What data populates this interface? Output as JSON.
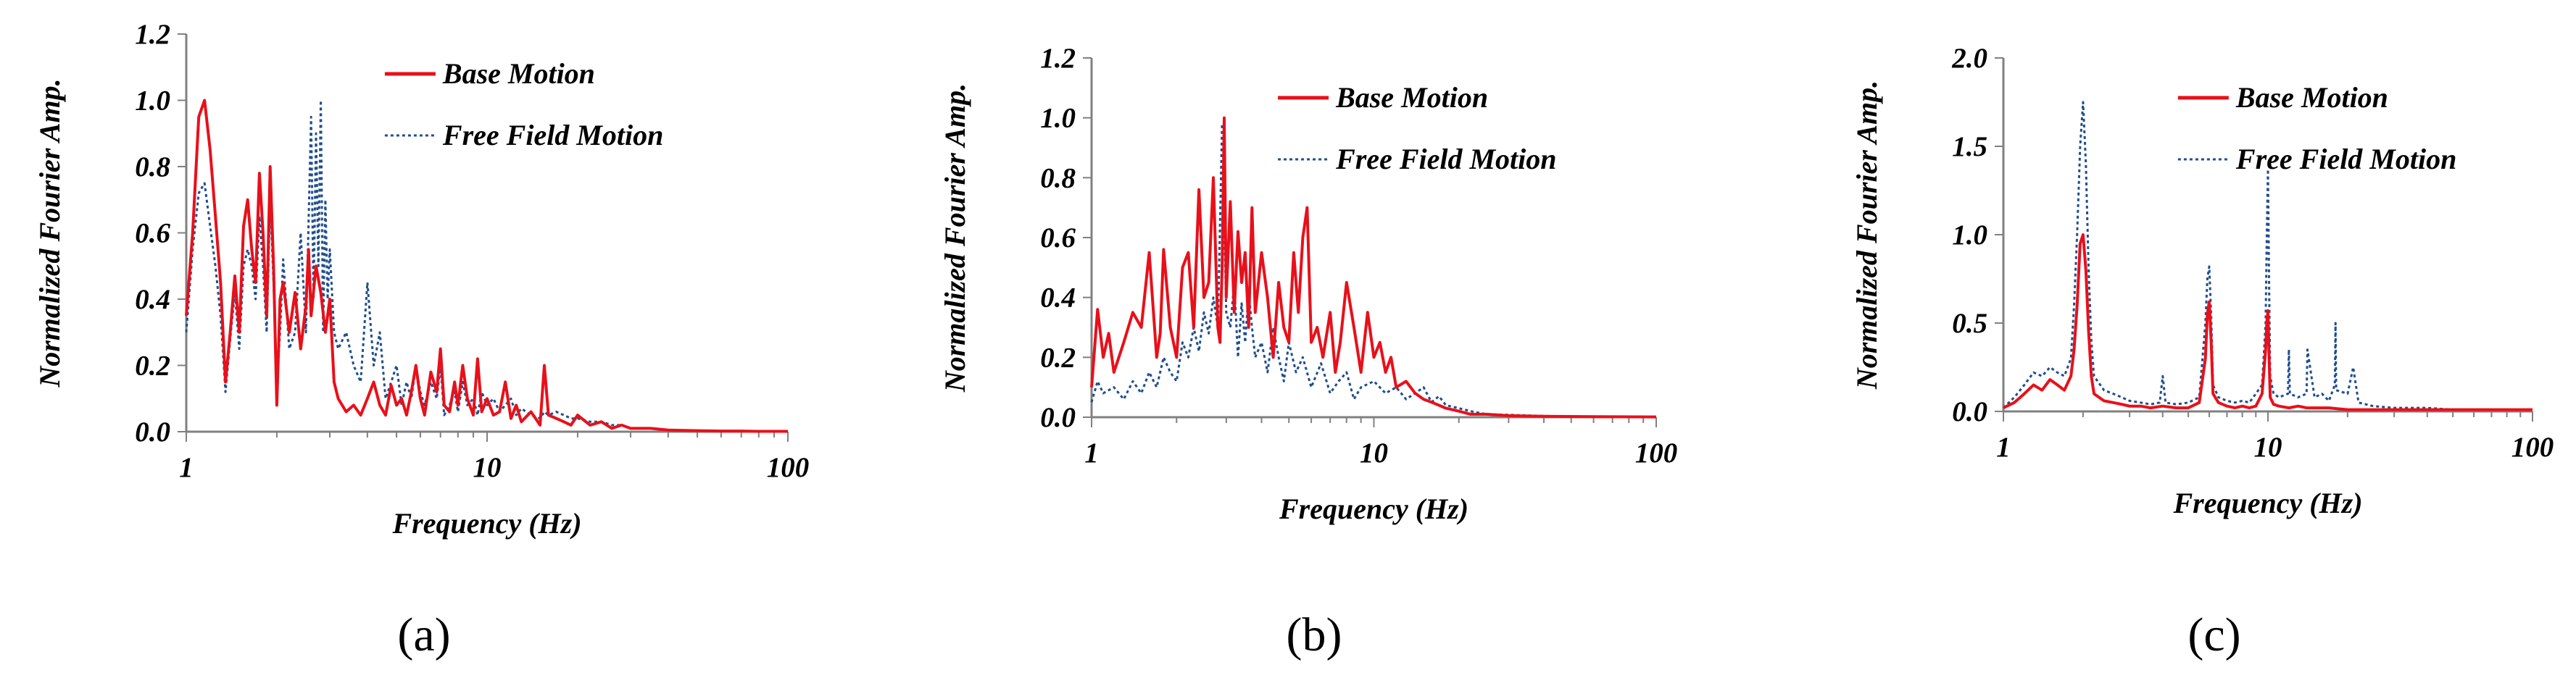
{
  "colors": {
    "base_motion": "#e8101a",
    "free_field_motion": "#1f4e8c",
    "axis": "#808080"
  },
  "chart_data": [
    {
      "type": "line",
      "panel_label": "(a)",
      "xlabel": "Frequency (Hz)",
      "ylabel": "Normalized Fourier Amp.",
      "xscale": "log",
      "xlim": [
        1,
        100
      ],
      "ylim": [
        0,
        1.2
      ],
      "x_ticks": [
        1,
        10,
        100
      ],
      "x_tick_labels": [
        "1",
        "10",
        "100"
      ],
      "y_ticks": [
        0,
        0.2,
        0.4,
        0.6,
        0.8,
        1.0,
        1.2
      ],
      "y_tick_labels": [
        "0.0",
        "0.2",
        "0.4",
        "0.6",
        "0.8",
        "1.0",
        "1.2"
      ],
      "grid": false,
      "legend": "top-right",
      "series": [
        {
          "name": "Base Motion",
          "style": "solid",
          "x": [
            1.0,
            1.05,
            1.1,
            1.15,
            1.2,
            1.25,
            1.3,
            1.35,
            1.4,
            1.45,
            1.5,
            1.55,
            1.6,
            1.65,
            1.7,
            1.75,
            1.8,
            1.85,
            1.9,
            1.95,
            2.0,
            2.05,
            2.1,
            2.2,
            2.3,
            2.4,
            2.5,
            2.55,
            2.6,
            2.7,
            2.8,
            2.9,
            3.0,
            3.1,
            3.2,
            3.4,
            3.6,
            3.8,
            4.0,
            4.2,
            4.4,
            4.6,
            4.8,
            5.0,
            5.2,
            5.4,
            5.6,
            5.8,
            6.0,
            6.2,
            6.5,
            6.8,
            7.0,
            7.2,
            7.5,
            7.8,
            8.0,
            8.3,
            8.6,
            9.0,
            9.3,
            9.6,
            10.0,
            10.5,
            11.0,
            11.5,
            12.0,
            12.5,
            13.0,
            14.0,
            15.0,
            15.5,
            16.0,
            17.0,
            18.0,
            19.0,
            20.0,
            22.0,
            24.0,
            26.0,
            28.0,
            30.0,
            35.0,
            40.0,
            50.0,
            60.0,
            70.0,
            80.0,
            100.0
          ],
          "y": [
            0.35,
            0.6,
            0.95,
            1.0,
            0.85,
            0.65,
            0.45,
            0.15,
            0.3,
            0.47,
            0.3,
            0.62,
            0.7,
            0.55,
            0.45,
            0.78,
            0.6,
            0.35,
            0.8,
            0.5,
            0.08,
            0.4,
            0.45,
            0.3,
            0.42,
            0.25,
            0.38,
            0.55,
            0.35,
            0.5,
            0.42,
            0.3,
            0.4,
            0.15,
            0.1,
            0.06,
            0.08,
            0.05,
            0.1,
            0.15,
            0.08,
            0.05,
            0.14,
            0.08,
            0.1,
            0.05,
            0.12,
            0.2,
            0.1,
            0.05,
            0.18,
            0.12,
            0.25,
            0.08,
            0.06,
            0.15,
            0.08,
            0.2,
            0.1,
            0.05,
            0.22,
            0.06,
            0.1,
            0.05,
            0.06,
            0.15,
            0.04,
            0.08,
            0.03,
            0.06,
            0.02,
            0.2,
            0.05,
            0.04,
            0.03,
            0.02,
            0.05,
            0.02,
            0.03,
            0.01,
            0.02,
            0.01,
            0.01,
            0.005,
            0.003,
            0.002,
            0.002,
            0.001,
            0.001
          ]
        },
        {
          "name": "Free Field Motion",
          "style": "dotted",
          "x": [
            1.0,
            1.05,
            1.1,
            1.15,
            1.2,
            1.25,
            1.3,
            1.35,
            1.4,
            1.45,
            1.5,
            1.55,
            1.6,
            1.65,
            1.7,
            1.75,
            1.8,
            1.85,
            1.9,
            1.95,
            2.0,
            2.05,
            2.1,
            2.2,
            2.3,
            2.4,
            2.5,
            2.6,
            2.65,
            2.7,
            2.75,
            2.8,
            2.85,
            2.9,
            2.95,
            3.0,
            3.1,
            3.2,
            3.4,
            3.6,
            3.8,
            4.0,
            4.2,
            4.4,
            4.6,
            4.8,
            5.0,
            5.2,
            5.4,
            5.6,
            5.8,
            6.0,
            6.2,
            6.5,
            6.8,
            7.0,
            7.2,
            7.5,
            7.8,
            8.0,
            8.3,
            8.6,
            9.0,
            9.3,
            9.6,
            10.0,
            10.5,
            11.0,
            11.5,
            12.0,
            12.5,
            13.0,
            14.0,
            15.0,
            15.5,
            16.0,
            17.0,
            18.0,
            19.0,
            20.0,
            22.0,
            24.0,
            26.0,
            28.0,
            30.0,
            35.0,
            40.0,
            50.0,
            60.0,
            70.0,
            80.0,
            100.0
          ],
          "y": [
            0.3,
            0.55,
            0.72,
            0.75,
            0.62,
            0.5,
            0.35,
            0.12,
            0.28,
            0.42,
            0.25,
            0.5,
            0.55,
            0.5,
            0.4,
            0.65,
            0.5,
            0.3,
            0.7,
            0.45,
            0.15,
            0.3,
            0.52,
            0.25,
            0.3,
            0.6,
            0.3,
            0.95,
            0.4,
            0.9,
            0.5,
            1.0,
            0.3,
            0.7,
            0.4,
            0.55,
            0.3,
            0.25,
            0.3,
            0.2,
            0.15,
            0.45,
            0.2,
            0.3,
            0.1,
            0.15,
            0.2,
            0.08,
            0.15,
            0.1,
            0.2,
            0.12,
            0.08,
            0.15,
            0.1,
            0.2,
            0.05,
            0.08,
            0.12,
            0.06,
            0.15,
            0.08,
            0.1,
            0.05,
            0.12,
            0.08,
            0.1,
            0.06,
            0.08,
            0.1,
            0.05,
            0.07,
            0.05,
            0.04,
            0.06,
            0.05,
            0.06,
            0.05,
            0.04,
            0.04,
            0.03,
            0.03,
            0.02,
            0.02,
            0.01,
            0.01,
            0.005,
            0.003,
            0.002,
            0.001,
            0.001,
            0.001
          ]
        }
      ]
    },
    {
      "type": "line",
      "panel_label": "(b)",
      "xlabel": "Frequency (Hz)",
      "ylabel": "Normalized Fourier Amp.",
      "xscale": "log",
      "xlim": [
        1,
        100
      ],
      "ylim": [
        0,
        1.2
      ],
      "x_ticks": [
        1,
        10,
        100
      ],
      "x_tick_labels": [
        "1",
        "10",
        "100"
      ],
      "y_ticks": [
        0,
        0.2,
        0.4,
        0.6,
        0.8,
        1.0,
        1.2
      ],
      "y_tick_labels": [
        "0.0",
        "0.2",
        "0.4",
        "0.6",
        "0.8",
        "1.0",
        "1.2"
      ],
      "grid": false,
      "legend": "top-right",
      "series": [
        {
          "name": "Base Motion",
          "style": "solid",
          "x": [
            1.0,
            1.05,
            1.1,
            1.15,
            1.2,
            1.3,
            1.4,
            1.5,
            1.6,
            1.7,
            1.75,
            1.8,
            1.9,
            2.0,
            2.1,
            2.2,
            2.3,
            2.4,
            2.5,
            2.6,
            2.7,
            2.8,
            2.85,
            2.9,
            2.95,
            3.0,
            3.1,
            3.2,
            3.3,
            3.4,
            3.5,
            3.6,
            3.7,
            3.8,
            3.9,
            4.0,
            4.2,
            4.4,
            4.6,
            4.8,
            5.0,
            5.2,
            5.4,
            5.6,
            5.8,
            6.0,
            6.3,
            6.6,
            7.0,
            7.3,
            7.6,
            8.0,
            8.5,
            9.0,
            9.5,
            10.0,
            10.5,
            11.0,
            11.5,
            12.0,
            13.0,
            14.0,
            15.0,
            16.0,
            17.0,
            18.0,
            20.0,
            22.0,
            25.0,
            30.0,
            40.0,
            60.0,
            100.0
          ],
          "y": [
            0.1,
            0.36,
            0.2,
            0.28,
            0.15,
            0.25,
            0.35,
            0.3,
            0.55,
            0.2,
            0.28,
            0.56,
            0.3,
            0.2,
            0.5,
            0.55,
            0.3,
            0.76,
            0.4,
            0.45,
            0.8,
            0.3,
            0.25,
            0.5,
            1.0,
            0.4,
            0.72,
            0.35,
            0.62,
            0.45,
            0.55,
            0.3,
            0.7,
            0.35,
            0.45,
            0.55,
            0.4,
            0.2,
            0.45,
            0.3,
            0.25,
            0.55,
            0.35,
            0.6,
            0.7,
            0.25,
            0.3,
            0.2,
            0.35,
            0.15,
            0.25,
            0.45,
            0.3,
            0.15,
            0.35,
            0.2,
            0.25,
            0.15,
            0.2,
            0.1,
            0.12,
            0.08,
            0.06,
            0.05,
            0.04,
            0.03,
            0.02,
            0.01,
            0.01,
            0.005,
            0.003,
            0.002,
            0.001
          ]
        },
        {
          "name": "Free Field Motion",
          "style": "dotted",
          "x": [
            1.0,
            1.05,
            1.1,
            1.2,
            1.3,
            1.4,
            1.5,
            1.6,
            1.7,
            1.8,
            1.9,
            2.0,
            2.1,
            2.2,
            2.3,
            2.4,
            2.5,
            2.6,
            2.7,
            2.8,
            2.9,
            3.0,
            3.1,
            3.2,
            3.3,
            3.4,
            3.5,
            3.6,
            3.7,
            3.8,
            4.0,
            4.2,
            4.4,
            4.6,
            4.8,
            5.0,
            5.3,
            5.6,
            6.0,
            6.5,
            7.0,
            7.5,
            8.0,
            8.5,
            9.0,
            10.0,
            11.0,
            12.0,
            13.0,
            14.0,
            15.0,
            16.0,
            17.0,
            18.0,
            20.0,
            22.0,
            25.0,
            30.0,
            40.0,
            60.0,
            100.0
          ],
          "y": [
            0.05,
            0.12,
            0.08,
            0.1,
            0.06,
            0.12,
            0.08,
            0.15,
            0.1,
            0.2,
            0.15,
            0.12,
            0.25,
            0.2,
            0.3,
            0.22,
            0.35,
            0.28,
            0.4,
            0.3,
            0.98,
            0.35,
            0.3,
            0.45,
            0.2,
            0.38,
            0.25,
            0.42,
            0.3,
            0.2,
            0.25,
            0.15,
            0.3,
            0.2,
            0.12,
            0.25,
            0.15,
            0.2,
            0.1,
            0.18,
            0.08,
            0.12,
            0.15,
            0.06,
            0.1,
            0.12,
            0.08,
            0.1,
            0.06,
            0.08,
            0.1,
            0.05,
            0.07,
            0.04,
            0.03,
            0.02,
            0.01,
            0.008,
            0.004,
            0.002,
            0.001
          ]
        }
      ]
    },
    {
      "type": "line",
      "panel_label": "(c)",
      "xlabel": "Frequency (Hz)",
      "ylabel": "Normalized Fourier Amp.",
      "xscale": "log",
      "xlim": [
        1,
        100
      ],
      "ylim": [
        0,
        2.0
      ],
      "x_ticks": [
        1,
        10,
        100
      ],
      "x_tick_labels": [
        "1",
        "10",
        "100"
      ],
      "y_ticks": [
        0,
        0.5,
        1.0,
        1.5,
        2.0
      ],
      "y_tick_labels": [
        "0.0",
        "0.5",
        "1.0",
        "1.5",
        "2.0"
      ],
      "grid": false,
      "legend": "top-right",
      "series": [
        {
          "name": "Base Motion",
          "style": "solid",
          "x": [
            1.0,
            1.1,
            1.2,
            1.3,
            1.4,
            1.5,
            1.6,
            1.7,
            1.8,
            1.85,
            1.9,
            1.95,
            2.0,
            2.05,
            2.1,
            2.15,
            2.2,
            2.4,
            2.6,
            2.8,
            3.0,
            3.3,
            3.6,
            4.0,
            4.5,
            5.0,
            5.5,
            5.8,
            5.9,
            6.0,
            6.1,
            6.2,
            6.5,
            7.0,
            7.5,
            8.0,
            8.5,
            9.0,
            9.5,
            9.8,
            9.9,
            10.0,
            10.1,
            10.2,
            10.5,
            11.0,
            12.0,
            13.0,
            14.0,
            15.0,
            17.0,
            20.0,
            25.0,
            30.0,
            40.0,
            50.0,
            60.0,
            80.0,
            100.0
          ],
          "y": [
            0.02,
            0.05,
            0.1,
            0.15,
            0.12,
            0.18,
            0.15,
            0.12,
            0.2,
            0.35,
            0.6,
            0.95,
            1.0,
            0.8,
            0.45,
            0.2,
            0.1,
            0.06,
            0.05,
            0.04,
            0.03,
            0.03,
            0.02,
            0.03,
            0.02,
            0.02,
            0.05,
            0.3,
            0.55,
            0.62,
            0.4,
            0.1,
            0.05,
            0.03,
            0.02,
            0.03,
            0.02,
            0.03,
            0.1,
            0.35,
            0.5,
            0.57,
            0.3,
            0.08,
            0.04,
            0.03,
            0.02,
            0.03,
            0.02,
            0.02,
            0.02,
            0.01,
            0.01,
            0.01,
            0.01,
            0.01,
            0.01,
            0.01,
            0.01
          ]
        },
        {
          "name": "Free Field Motion",
          "style": "dotted",
          "x": [
            1.0,
            1.1,
            1.2,
            1.3,
            1.4,
            1.5,
            1.6,
            1.7,
            1.8,
            1.85,
            1.9,
            1.95,
            2.0,
            2.05,
            2.1,
            2.15,
            2.2,
            2.4,
            2.6,
            2.8,
            3.0,
            3.3,
            3.6,
            3.9,
            4.0,
            4.1,
            4.5,
            5.0,
            5.5,
            5.8,
            5.9,
            6.0,
            6.1,
            6.2,
            6.5,
            7.0,
            7.5,
            8.0,
            8.5,
            9.0,
            9.5,
            9.8,
            9.9,
            10.0,
            10.1,
            10.2,
            10.5,
            11.0,
            11.9,
            12.0,
            12.1,
            13.0,
            14.0,
            14.1,
            15.0,
            16.0,
            17.0,
            17.9,
            18.0,
            18.1,
            20.0,
            21.0,
            22.0,
            25.0,
            30.0,
            40.0,
            50.0,
            60.0,
            80.0,
            100.0
          ],
          "y": [
            0.02,
            0.08,
            0.15,
            0.22,
            0.2,
            0.25,
            0.22,
            0.2,
            0.3,
            0.6,
            1.0,
            1.5,
            1.75,
            1.4,
            0.8,
            0.4,
            0.2,
            0.12,
            0.1,
            0.08,
            0.06,
            0.05,
            0.04,
            0.05,
            0.2,
            0.05,
            0.04,
            0.05,
            0.08,
            0.5,
            0.75,
            0.82,
            0.55,
            0.15,
            0.08,
            0.06,
            0.05,
            0.06,
            0.05,
            0.1,
            0.15,
            0.5,
            1.0,
            1.37,
            0.7,
            0.2,
            0.1,
            0.08,
            0.1,
            0.35,
            0.1,
            0.08,
            0.1,
            0.35,
            0.08,
            0.1,
            0.06,
            0.15,
            0.5,
            0.12,
            0.1,
            0.25,
            0.05,
            0.03,
            0.02,
            0.02,
            0.01,
            0.01,
            0.01,
            0.01
          ]
        }
      ]
    }
  ]
}
